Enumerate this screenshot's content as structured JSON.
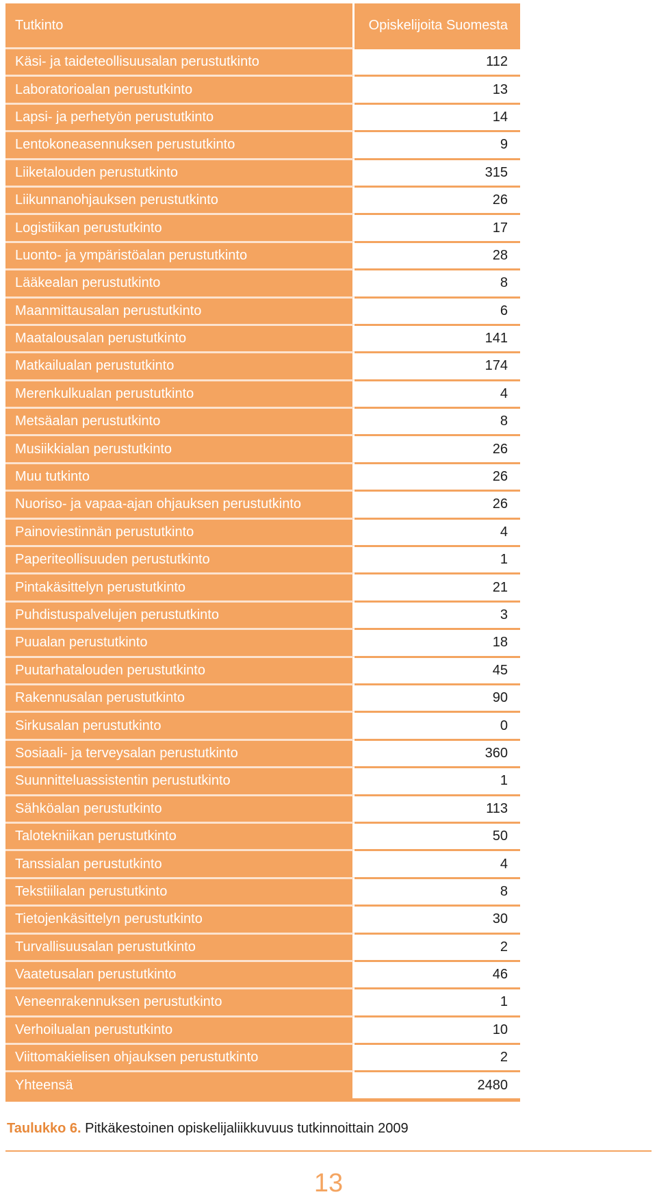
{
  "table": {
    "header": {
      "name": "Tutkinto",
      "count": "Opiskelijoita Suomesta"
    },
    "rows": [
      {
        "name": "Käsi- ja taideteollisuusalan perustutkinto",
        "count": "112"
      },
      {
        "name": "Laboratorioalan perustutkinto",
        "count": "13"
      },
      {
        "name": "Lapsi- ja perhetyön perustutkinto",
        "count": "14"
      },
      {
        "name": "Lentokoneasennuksen perustutkinto",
        "count": "9"
      },
      {
        "name": "Liiketalouden perustutkinto",
        "count": "315"
      },
      {
        "name": "Liikunnanohjauksen perustutkinto",
        "count": "26"
      },
      {
        "name": "Logistiikan perustutkinto",
        "count": "17"
      },
      {
        "name": "Luonto- ja ympäristöalan perustutkinto",
        "count": "28"
      },
      {
        "name": "Lääkealan perustutkinto",
        "count": "8"
      },
      {
        "name": "Maanmittausalan perustutkinto",
        "count": "6"
      },
      {
        "name": "Maatalousalan perustutkinto",
        "count": "141"
      },
      {
        "name": "Matkailualan perustutkinto",
        "count": "174"
      },
      {
        "name": "Merenkulkualan perustutkinto",
        "count": "4"
      },
      {
        "name": "Metsäalan perustutkinto",
        "count": "8"
      },
      {
        "name": "Musiikkialan perustutkinto",
        "count": "26"
      },
      {
        "name": "Muu tutkinto",
        "count": "26"
      },
      {
        "name": "Nuoriso- ja vapaa-ajan ohjauksen perustutkinto",
        "count": "26"
      },
      {
        "name": "Painoviestinnän perustutkinto",
        "count": "4"
      },
      {
        "name": "Paperiteollisuuden perustutkinto",
        "count": "1"
      },
      {
        "name": "Pintakäsittelyn perustutkinto",
        "count": "21"
      },
      {
        "name": "Puhdistuspalvelujen perustutkinto",
        "count": "3"
      },
      {
        "name": "Puualan perustutkinto",
        "count": "18"
      },
      {
        "name": "Puutarhatalouden perustutkinto",
        "count": "45"
      },
      {
        "name": "Rakennusalan perustutkinto",
        "count": "90"
      },
      {
        "name": "Sirkusalan perustutkinto",
        "count": "0"
      },
      {
        "name": "Sosiaali- ja terveysalan perustutkinto",
        "count": "360"
      },
      {
        "name": "Suunnitteluassistentin perustutkinto",
        "count": "1"
      },
      {
        "name": "Sähköalan perustutkinto",
        "count": "113"
      },
      {
        "name": "Talotekniikan perustutkinto",
        "count": "50"
      },
      {
        "name": "Tanssialan perustutkinto",
        "count": "4"
      },
      {
        "name": "Tekstiilialan perustutkinto",
        "count": "8"
      },
      {
        "name": "Tietojenkäsittelyn perustutkinto",
        "count": "30"
      },
      {
        "name": "Turvallisuusalan perustutkinto",
        "count": "2"
      },
      {
        "name": "Vaatetusalan perustutkinto",
        "count": "46"
      },
      {
        "name": "Veneenrakennuksen perustutkinto",
        "count": "1"
      },
      {
        "name": "Verhoilualan perustutkinto",
        "count": "10"
      },
      {
        "name": "Viittomakielisen ohjauksen perustutkinto",
        "count": "2"
      },
      {
        "name": "Yhteensä",
        "count": "2480"
      }
    ]
  },
  "caption": {
    "label": "Taulukko 6.",
    "text": "Pitkäkestoinen opiskelijaliikkuvuus tutkinnoittain 2009"
  },
  "page_number": "13",
  "colors": {
    "accent": "#f4a460",
    "caption_label": "#e8893a"
  }
}
